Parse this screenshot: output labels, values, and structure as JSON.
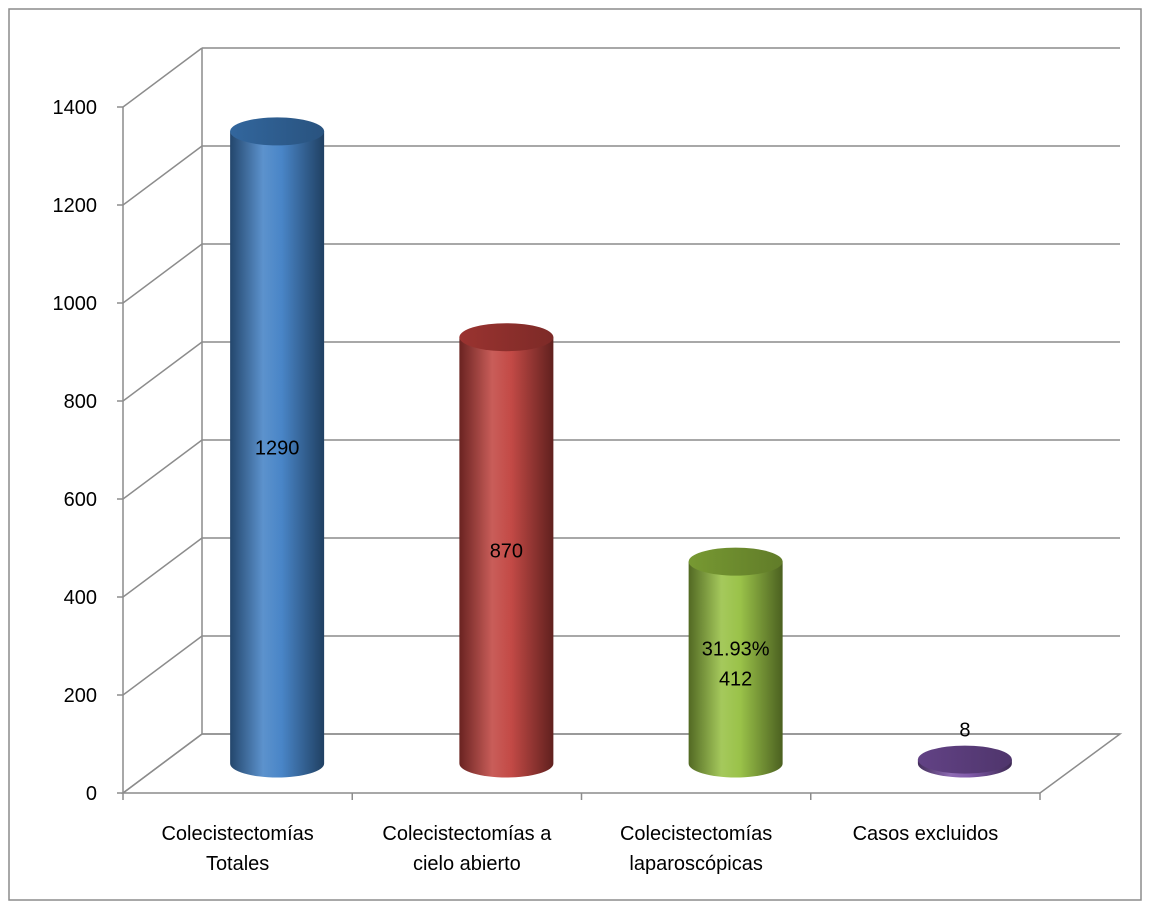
{
  "chart_data": {
    "type": "bar",
    "style": "3d-cylinder",
    "categories": [
      [
        "Colecistectomías",
        "Totales"
      ],
      [
        "Colecistectomías a",
        "cielo abierto"
      ],
      [
        "Colecistectomías",
        "laparoscópicas"
      ],
      [
        "Casos excluidos"
      ]
    ],
    "values": [
      1290,
      870,
      412,
      8
    ],
    "data_labels": [
      [
        "1290"
      ],
      [
        "870"
      ],
      [
        "31.93%",
        "412"
      ],
      [
        "8"
      ]
    ],
    "colors": [
      "#3f7fc4",
      "#c0403c",
      "#95bf3f",
      "#7a52a6"
    ],
    "title": "",
    "xlabel": "",
    "ylabel": "",
    "ylim": [
      0,
      1400
    ],
    "yticks": [
      0,
      200,
      400,
      600,
      800,
      1000,
      1200,
      1400
    ],
    "grid": true,
    "legend": "none"
  }
}
